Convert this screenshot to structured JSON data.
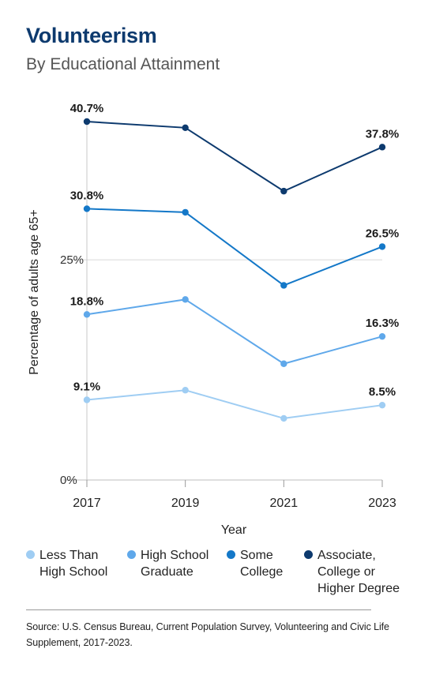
{
  "header": {
    "title": "Volunteerism",
    "subtitle": "By Educational Attainment"
  },
  "chart_data": {
    "type": "line",
    "x": [
      "2017",
      "2019",
      "2021",
      "2023"
    ],
    "xlabel": "Year",
    "ylabel": "Percentage of adults age 65+",
    "ylim": [
      0,
      40.7
    ],
    "yticks": [
      0,
      25
    ],
    "ytick_labels": [
      "0%",
      "25%"
    ],
    "grid": "horizontal line at 25%",
    "legend_position": "bottom",
    "series": [
      {
        "name": "Less Than\nHigh School",
        "color": "#9fcdf3",
        "values": [
          9.1,
          10.2,
          7.0,
          8.5
        ],
        "labels": {
          "0": "9.1%",
          "3": "8.5%"
        }
      },
      {
        "name": "High School\nGraduate",
        "color": "#5fa8ea",
        "values": [
          18.8,
          20.5,
          13.2,
          16.3
        ],
        "labels": {
          "0": "18.8%",
          "3": "16.3%"
        }
      },
      {
        "name": "Some\nCollege",
        "color": "#1478c8",
        "values": [
          30.8,
          30.4,
          22.1,
          26.5
        ],
        "labels": {
          "0": "30.8%",
          "3": "26.5%"
        }
      },
      {
        "name": "Associate,\nCollege or\nHigher Degree",
        "color": "#0d3a6e",
        "values": [
          40.7,
          40.0,
          32.8,
          37.8
        ],
        "labels": {
          "0": "40.7%",
          "3": "37.8%"
        }
      }
    ]
  },
  "footer": {
    "source": "Source: U.S. Census Bureau, Current Population Survey, Volunteering and Civic Life Supplement, 2017-2023."
  }
}
